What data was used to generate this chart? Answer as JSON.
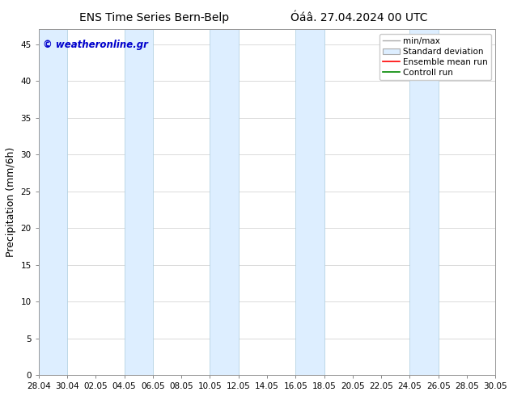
{
  "title_left": "ENS Time Series Bern-Belp",
  "title_right": "Óáâ. 27.04.2024 00 UTC",
  "ylabel": "Precipitation (mm/6h)",
  "watermark": "© weatheronline.gr",
  "watermark_color": "#0000cc",
  "ylim": [
    0,
    47
  ],
  "yticks": [
    0,
    5,
    10,
    15,
    20,
    25,
    30,
    35,
    40,
    45
  ],
  "x_start": 0,
  "x_end": 32,
  "xtick_labels": [
    "28.04",
    "30.04",
    "02.05",
    "04.05",
    "06.05",
    "08.05",
    "10.05",
    "12.05",
    "14.05",
    "16.05",
    "18.05",
    "20.05",
    "22.05",
    "24.05",
    "26.05",
    "28.05",
    "30.05"
  ],
  "xtick_positions": [
    0,
    2,
    4,
    6,
    8,
    10,
    12,
    14,
    16,
    18,
    20,
    22,
    24,
    26,
    28,
    30,
    32
  ],
  "shaded_bands": [
    {
      "x_start": 0.0,
      "x_end": 2.0
    },
    {
      "x_start": 6.0,
      "x_end": 8.0
    },
    {
      "x_start": 12.0,
      "x_end": 14.0
    },
    {
      "x_start": 18.0,
      "x_end": 20.0
    },
    {
      "x_start": 26.0,
      "x_end": 28.0
    }
  ],
  "band_color": "#ddeeff",
  "band_edge_color": "#aaccdd",
  "background_color": "#ffffff",
  "legend_entries": [
    "min/max",
    "Standard deviation",
    "Ensemble mean run",
    "Controll run"
  ],
  "legend_colors": [
    "#aaaaaa",
    "#cccccc",
    "#ff0000",
    "#008800"
  ],
  "title_fontsize": 10,
  "axis_fontsize": 9,
  "tick_fontsize": 7.5,
  "watermark_fontsize": 8.5,
  "legend_fontsize": 7.5
}
